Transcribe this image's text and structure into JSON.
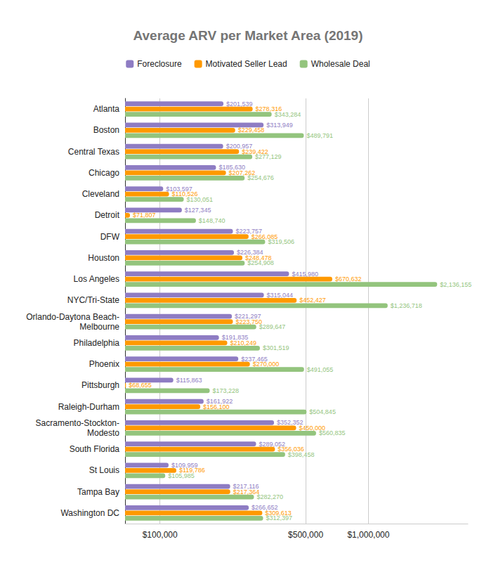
{
  "chart_data": {
    "type": "bar",
    "title": "Average ARV per Market Area (2019)",
    "orientation": "horizontal",
    "log": "x",
    "grid": true,
    "legend": "top",
    "data_labels": true,
    "categories": [
      "Atlanta",
      "Boston",
      "Central Texas",
      "Chicago",
      "Cleveland",
      "Detroit",
      "DFW",
      "Houston",
      "Los Angeles",
      "NYC/Tri-State",
      "Orlando-Daytona Beach-\nMelbourne",
      "Philadelphia",
      "Phoenix",
      "Pittsburgh",
      "Raleigh-Durham",
      "Sacramento-Stockton-\nModesto",
      "South Florida",
      "St Louis",
      "Tampa Bay",
      "Washington DC"
    ],
    "xlim": [
      68000,
      3000000
    ],
    "xticks": [
      {
        "value": 100000,
        "label": "$100,000"
      },
      {
        "value": 500000,
        "label": "$500,000"
      },
      {
        "value": 1000000,
        "label": "$1,000,000"
      }
    ],
    "series": [
      {
        "name": "Foreclosure",
        "color": "#8e7cc3",
        "values": [
          201539,
          313949,
          200957,
          185630,
          103597,
          127345,
          223757,
          226384,
          415980,
          315044,
          221297,
          191835,
          237465,
          115863,
          161922,
          352352,
          289052,
          109959,
          217116,
          266652
        ],
        "value_labels": [
          "$201,539",
          "$313,949",
          "$200,957",
          "$185,630",
          "$103,597",
          "$127,345",
          "$223,757",
          "$226,384",
          "$415,980",
          "$315,044",
          "$221,297",
          "$191,835",
          "$237,465",
          "$115,863",
          "$161,922",
          "$352,352",
          "$289,052",
          "$109,959",
          "$217,116",
          "$266,652"
        ]
      },
      {
        "name": "Motivated Seller Lead",
        "color": "#ff9900",
        "values": [
          278316,
          229458,
          239422,
          207262,
          110526,
          71807,
          266085,
          248478,
          670632,
          452427,
          223750,
          210249,
          270000,
          68655,
          156100,
          450000,
          356036,
          119786,
          217364,
          309613
        ],
        "value_labels": [
          "$278,316",
          "$229,458",
          "$239,422",
          "$207,262",
          "$110,526",
          "$71,807",
          "$266,085",
          "$248,478",
          "$670,632",
          "$452,427",
          "$223,750",
          "$210,249",
          "$270,000",
          "$68,655",
          "$156,100",
          "$450,000",
          "$356,036",
          "$119,786",
          "$217,364",
          "$309,613"
        ]
      },
      {
        "name": "Wholesale Deal",
        "color": "#93c47d",
        "values": [
          343284,
          489791,
          277129,
          254676,
          130051,
          148740,
          319506,
          254908,
          2136155,
          1236718,
          289647,
          301519,
          491055,
          173228,
          504845,
          560835,
          398458,
          105985,
          282270,
          312397
        ],
        "value_labels": [
          "$343,284",
          "$489,791",
          "$277,129",
          "$254,676",
          "$130,051",
          "$148,740",
          "$319,506",
          "$254,908",
          "$2,136,155",
          "$1,236,718",
          "$289,647",
          "$301,519",
          "$491,055",
          "$173,228",
          "$504,845",
          "$560,835",
          "$398,458",
          "$105,985",
          "$282,270",
          "$312,397"
        ]
      }
    ]
  }
}
